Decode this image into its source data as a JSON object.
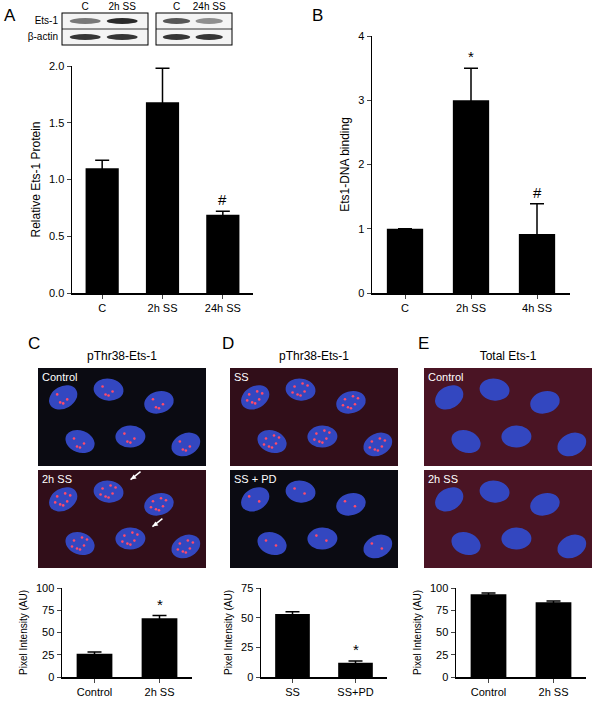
{
  "chart_data": [
    {
      "type": "bar",
      "title": "A",
      "categories": [
        "C",
        "2h SS",
        "24h SS"
      ],
      "values": [
        1.1,
        1.68,
        0.69
      ],
      "errors": [
        0.07,
        0.3,
        0.03
      ],
      "annotations": [
        null,
        null,
        "#"
      ],
      "ylabel": "Relative Ets-1 Protein",
      "ylim": [
        0,
        2.0
      ],
      "yticks": [
        {
          "value": 0,
          "label": "0.0"
        },
        {
          "value": 0.5,
          "label": "0.5"
        },
        {
          "value": 1.0,
          "label": "1.0"
        },
        {
          "value": 1.5,
          "label": "1.5"
        },
        {
          "value": 2.0,
          "label": "2.0"
        }
      ],
      "color": "#000000",
      "grid": false
    },
    {
      "type": "bar",
      "title": "B",
      "categories": [
        "C",
        "2h SS",
        "4h SS"
      ],
      "values": [
        1.0,
        3.0,
        0.92
      ],
      "errors": [
        0,
        0.5,
        0.47
      ],
      "annotations": [
        null,
        "*",
        "#"
      ],
      "ylabel": "Ets1-DNA binding",
      "ylim": [
        0,
        4
      ],
      "yticks": [
        0,
        1,
        2,
        3,
        4
      ],
      "color": "#000000",
      "grid": false
    },
    {
      "type": "bar",
      "title": "C",
      "subtitle": "pThr38-Ets-1",
      "categories": [
        "Control",
        "2h SS"
      ],
      "values": [
        26,
        66
      ],
      "errors": [
        2,
        3
      ],
      "annotations": [
        null,
        "*"
      ],
      "ylabel": "Pixel Intensity (AU)",
      "ylim": [
        0,
        100
      ],
      "yticks": [
        0,
        25,
        50,
        75,
        100
      ],
      "color": "#000000",
      "grid": false
    },
    {
      "type": "bar",
      "title": "D",
      "subtitle": "pThr38-Ets-1",
      "categories": [
        "SS",
        "SS+PD"
      ],
      "values": [
        53,
        12
      ],
      "errors": [
        2,
        1.5
      ],
      "annotations": [
        null,
        "*"
      ],
      "ylabel": "Pixel Intensity (AU)",
      "ylim": [
        0,
        75
      ],
      "yticks": [
        0,
        25,
        50,
        75
      ],
      "color": "#000000",
      "grid": false
    },
    {
      "type": "bar",
      "title": "E",
      "subtitle": "Total Ets-1",
      "categories": [
        "Control",
        "2h SS"
      ],
      "values": [
        93,
        84
      ],
      "errors": [
        1.5,
        1.5
      ],
      "annotations": [
        null,
        null
      ],
      "ylabel": "Pixel Intensity (AU)",
      "ylim": [
        0,
        100
      ],
      "yticks": [
        0,
        25,
        50,
        75,
        100
      ],
      "color": "#000000",
      "grid": false
    }
  ],
  "blot": {
    "rows": [
      "Ets-1",
      "β-actin"
    ],
    "lanes": [
      [
        "C",
        "2h SS"
      ],
      [
        "C",
        "24h SS"
      ]
    ]
  },
  "micrographs": [
    [
      "Control",
      "2h SS"
    ],
    [
      "SS",
      "SS + PD"
    ],
    [
      "Control",
      "2h SS"
    ]
  ]
}
